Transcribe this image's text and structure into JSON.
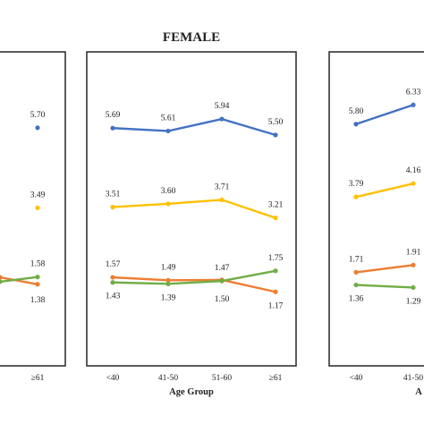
{
  "chart_data": [
    {
      "type": "line",
      "title": "",
      "xlabel": "",
      "ylabel": "",
      "categories": [
        "",
        "",
        "",
        "≥61"
      ],
      "series": [
        {
          "color": "#4472c4",
          "values": [
            null,
            null,
            null,
            5.7
          ],
          "labels": [
            "",
            "",
            "",
            "5.70"
          ]
        },
        {
          "color": "#ffc000",
          "values": [
            null,
            null,
            null,
            3.49
          ],
          "labels": [
            "",
            "",
            "",
            "3.49"
          ]
        },
        {
          "color": "#ed7d31",
          "values": [
            null,
            null,
            1.57,
            1.38
          ],
          "labels": [
            "",
            "",
            "",
            "1.38"
          ]
        },
        {
          "color": "#70ad47",
          "values": [
            null,
            null,
            1.45,
            1.58
          ],
          "labels": [
            "",
            "",
            "",
            "1.58"
          ]
        }
      ],
      "ylim": [
        0,
        7.3
      ]
    },
    {
      "type": "line",
      "title": "FEMALE",
      "xlabel": "Age Group",
      "ylabel": "",
      "categories": [
        "<40",
        "41-50",
        "51-60",
        "≥61"
      ],
      "series": [
        {
          "color": "#4472c4",
          "values": [
            5.69,
            5.61,
            5.94,
            5.5
          ],
          "labels": [
            "5.69",
            "5.61",
            "5.94",
            "5.50"
          ]
        },
        {
          "color": "#ffc000",
          "values": [
            3.51,
            3.6,
            3.71,
            3.21
          ],
          "labels": [
            "3.51",
            "3.60",
            "3.71",
            "3.21"
          ]
        },
        {
          "color": "#ed7d31",
          "values": [
            1.57,
            1.49,
            1.5,
            1.17
          ],
          "labels": [
            "1.57",
            "1.49",
            "1.50",
            "1.17"
          ]
        },
        {
          "color": "#70ad47",
          "values": [
            1.43,
            1.39,
            1.47,
            1.75
          ],
          "labels": [
            "1.43",
            "1.39",
            "1.47",
            "1.75"
          ]
        }
      ],
      "ylim": [
        0,
        7.3
      ]
    },
    {
      "type": "line",
      "title": "",
      "xlabel": "A",
      "ylabel": "",
      "categories": [
        "<40",
        "41-50",
        "",
        ""
      ],
      "series": [
        {
          "color": "#4472c4",
          "values": [
            5.8,
            6.33,
            null,
            null
          ],
          "labels": [
            "5.80",
            "6.33",
            "",
            ""
          ]
        },
        {
          "color": "#ffc000",
          "values": [
            3.79,
            4.16,
            null,
            null
          ],
          "labels": [
            "3.79",
            "4.16",
            "",
            ""
          ]
        },
        {
          "color": "#ed7d31",
          "values": [
            1.71,
            1.91,
            null,
            null
          ],
          "labels": [
            "1.71",
            "1.91",
            "",
            ""
          ]
        },
        {
          "color": "#70ad47",
          "values": [
            1.36,
            1.29,
            null,
            null
          ],
          "labels": [
            "1.36",
            "1.29",
            "",
            ""
          ]
        }
      ],
      "ylim": [
        0,
        7.3
      ]
    }
  ]
}
